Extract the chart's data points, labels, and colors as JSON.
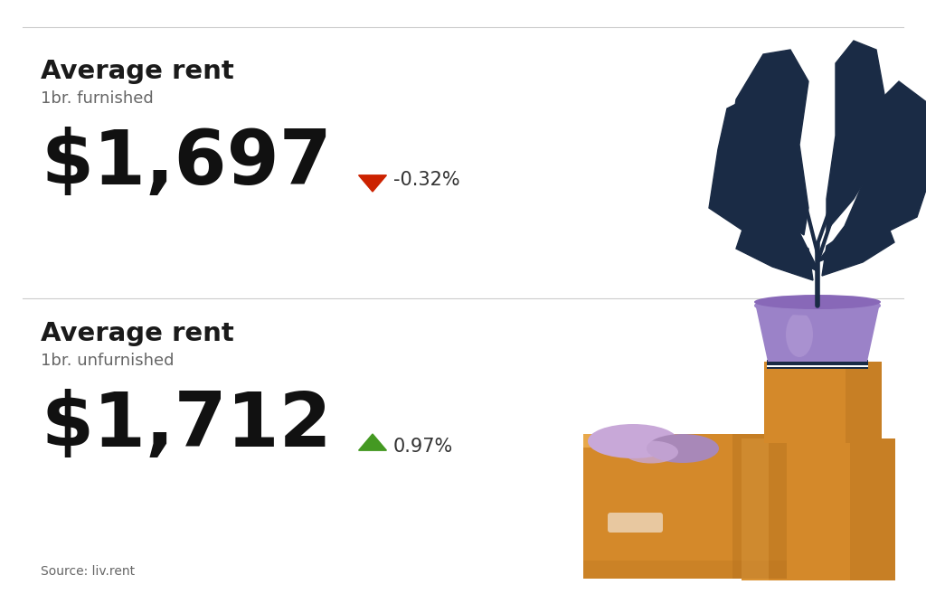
{
  "bg_color": "#ffffff",
  "divider_color": "#cccccc",
  "title1": "Average rent",
  "subtitle1": "1br. furnished",
  "value1": "$1,697",
  "change1": "-0.32%",
  "arrow1_color": "#cc2200",
  "change1_color": "#333333",
  "title2": "Average rent",
  "subtitle2": "1br. unfurnished",
  "value2": "$1,712",
  "change2": "0.97%",
  "arrow2_color": "#449922",
  "change2_color": "#333333",
  "source_text": "Source: liv.rent",
  "title_color": "#1a1a1a",
  "subtitle_color": "#666666",
  "value_color": "#111111",
  "title_fontsize": 21,
  "subtitle_fontsize": 13,
  "value_fontsize": 60,
  "change_fontsize": 15,
  "source_fontsize": 10,
  "plant_color": "#1a2b45",
  "pot_color": "#9b82c8",
  "pot_highlight": "#b8a0d8",
  "pot_rim_color": "#1a2b45",
  "box_color": "#d4892a",
  "box_shadow": "#b8741f",
  "box_light": "#e8a84a",
  "cloth_color": "#c8a8d8",
  "cloth_shadow": "#a888b8",
  "book_color": "#1a2b45"
}
